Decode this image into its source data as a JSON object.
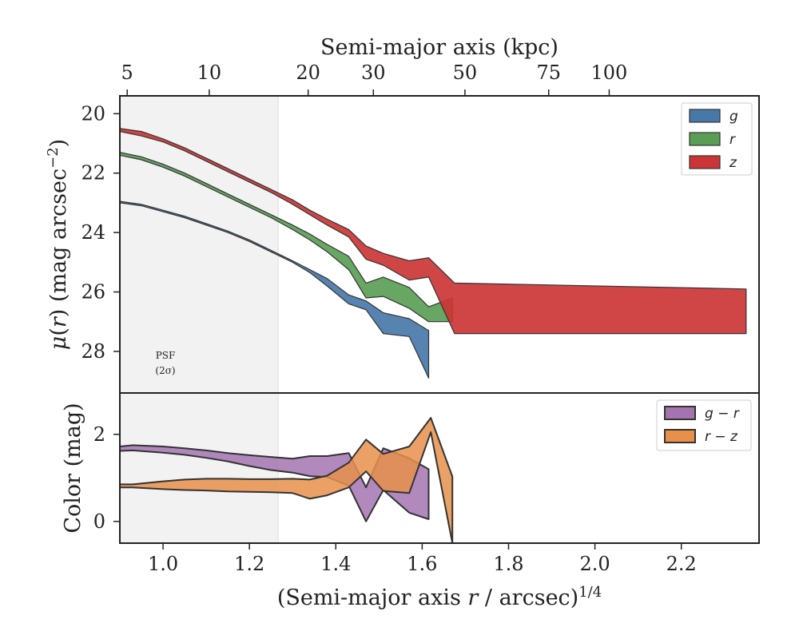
{
  "chart_data": [
    {
      "type": "area",
      "panel": "surface-brightness",
      "ylabel": "μ(r) (mag arcsec⁻²)",
      "ylim": [
        29.4,
        19.4
      ],
      "yticks": [
        20,
        22,
        24,
        26,
        28
      ],
      "top_xlabel": "Semi-major axis (kpc)",
      "top_xticks": [
        {
          "label": "5",
          "x": 0.917
        },
        {
          "label": "10",
          "x": 1.107
        },
        {
          "label": "20",
          "x": 1.336
        },
        {
          "label": "30",
          "x": 1.487
        },
        {
          "label": "50",
          "x": 1.699
        },
        {
          "label": "75",
          "x": 1.893
        },
        {
          "label": "100",
          "x": 2.033
        }
      ],
      "psf_label": [
        "PSF",
        "(2σ)"
      ],
      "legend": [
        "g",
        "r",
        "z"
      ],
      "legend_position": "upper right",
      "series": [
        {
          "name": "g",
          "color": "#4878a8",
          "x": [
            0.9,
            0.95,
            1.0,
            1.05,
            1.1,
            1.15,
            1.2,
            1.25,
            1.3,
            1.34,
            1.38,
            1.43,
            1.47,
            1.51,
            1.57,
            1.615
          ],
          "upper": [
            23.0,
            23.1,
            23.3,
            23.5,
            23.75,
            24.0,
            24.3,
            24.65,
            25.0,
            25.35,
            25.8,
            26.4,
            26.6,
            27.4,
            27.5,
            28.9
          ],
          "lower": [
            22.95,
            23.05,
            23.25,
            23.45,
            23.7,
            23.95,
            24.25,
            24.6,
            24.95,
            25.25,
            25.55,
            26.1,
            26.3,
            26.7,
            26.9,
            27.3
          ]
        },
        {
          "name": "r",
          "color": "#5a9e56",
          "x": [
            0.9,
            0.95,
            1.0,
            1.05,
            1.1,
            1.15,
            1.2,
            1.25,
            1.3,
            1.34,
            1.38,
            1.43,
            1.47,
            1.51,
            1.57,
            1.615,
            1.67
          ],
          "upper": [
            21.4,
            21.55,
            21.8,
            22.1,
            22.45,
            22.8,
            23.15,
            23.5,
            23.9,
            24.25,
            24.65,
            25.25,
            26.2,
            26.15,
            26.55,
            27.0,
            27.0
          ],
          "lower": [
            21.3,
            21.45,
            21.7,
            22.0,
            22.35,
            22.7,
            23.05,
            23.4,
            23.75,
            24.05,
            24.4,
            24.8,
            25.7,
            25.5,
            25.85,
            26.5,
            26.2
          ]
        },
        {
          "name": "z",
          "color": "#cc3535",
          "x": [
            0.9,
            0.95,
            1.0,
            1.05,
            1.1,
            1.15,
            1.2,
            1.25,
            1.3,
            1.34,
            1.38,
            1.43,
            1.47,
            1.51,
            1.57,
            1.615,
            1.675,
            2.35
          ],
          "upper": [
            20.6,
            20.75,
            20.95,
            21.25,
            21.6,
            21.95,
            22.3,
            22.65,
            23.05,
            23.4,
            23.75,
            24.15,
            24.9,
            25.1,
            25.6,
            25.5,
            27.4,
            27.4
          ],
          "lower": [
            20.5,
            20.6,
            20.85,
            21.15,
            21.5,
            21.85,
            22.2,
            22.55,
            22.9,
            23.25,
            23.55,
            23.9,
            24.45,
            24.7,
            24.95,
            24.85,
            25.7,
            25.9
          ]
        }
      ]
    },
    {
      "type": "area",
      "panel": "color",
      "ylabel": "Color (mag)",
      "xlabel": "(Semi-major axis r / arcsec)^1/4",
      "xlim": [
        0.9,
        2.38
      ],
      "xticks": [
        1.0,
        1.2,
        1.4,
        1.6,
        1.8,
        2.0,
        2.2
      ],
      "ylim": [
        -0.5,
        2.95
      ],
      "yticks": [
        0,
        2
      ],
      "legend": [
        "g − r",
        "r − z"
      ],
      "legend_position": "upper right",
      "series": [
        {
          "name": "g − r",
          "color": "#a374b0",
          "x": [
            0.9,
            0.93,
            1.0,
            1.05,
            1.1,
            1.15,
            1.2,
            1.25,
            1.3,
            1.34,
            1.38,
            1.43,
            1.47,
            1.51,
            1.57,
            1.615
          ],
          "upper": [
            1.72,
            1.75,
            1.72,
            1.68,
            1.63,
            1.57,
            1.52,
            1.48,
            1.44,
            1.5,
            1.5,
            1.57,
            0.78,
            1.68,
            1.45,
            1.2
          ],
          "lower": [
            1.62,
            1.63,
            1.58,
            1.53,
            1.46,
            1.38,
            1.27,
            1.18,
            1.12,
            1.04,
            1.02,
            0.82,
            0.0,
            0.72,
            0.2,
            0.05
          ]
        },
        {
          "name": "r − z",
          "color": "#e8904a",
          "x": [
            0.9,
            0.93,
            1.0,
            1.05,
            1.1,
            1.15,
            1.2,
            1.25,
            1.3,
            1.34,
            1.38,
            1.43,
            1.47,
            1.51,
            1.57,
            1.62,
            1.67
          ],
          "upper": [
            0.85,
            0.85,
            0.92,
            0.96,
            0.98,
            0.98,
            0.97,
            0.97,
            0.98,
            0.96,
            1.05,
            1.35,
            1.88,
            1.55,
            1.72,
            2.38,
            1.03
          ],
          "lower": [
            0.78,
            0.78,
            0.74,
            0.72,
            0.71,
            0.69,
            0.68,
            0.67,
            0.65,
            0.52,
            0.6,
            0.78,
            1.15,
            0.7,
            0.65,
            2.05,
            -0.5
          ]
        }
      ]
    }
  ]
}
